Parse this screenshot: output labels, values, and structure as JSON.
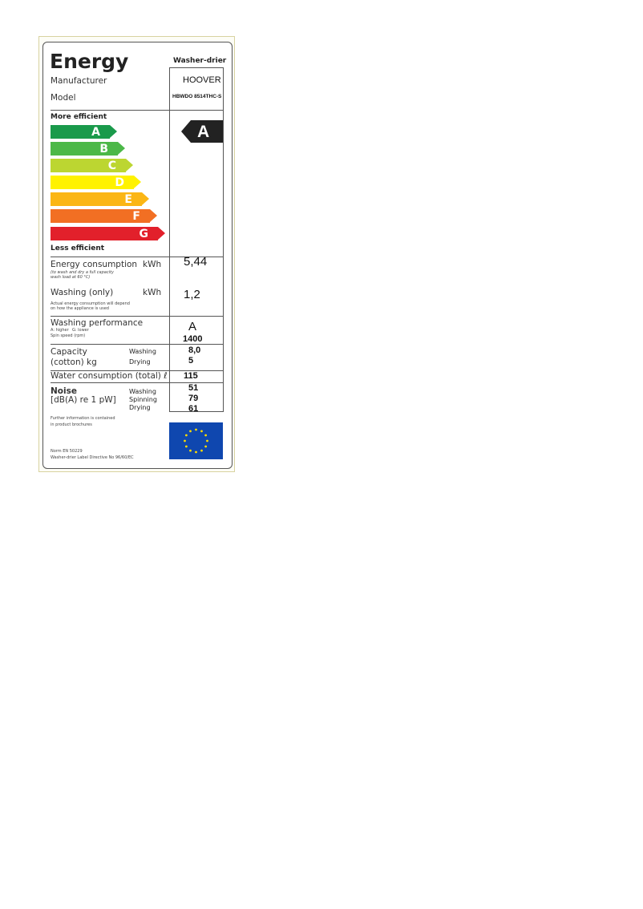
{
  "label": {
    "title": "Energy",
    "appliance_type": "Washer-drier",
    "manufacturer_label": "Manufacturer",
    "manufacturer": "HOOVER",
    "model_label": "Model",
    "model": "HBWDO 8514THC-S",
    "more_efficient": "More efficient",
    "less_efficient": "Less efficient",
    "classes": [
      {
        "letter": "A",
        "color": "#1a9a4b"
      },
      {
        "letter": "B",
        "color": "#4cb848"
      },
      {
        "letter": "C",
        "color": "#bcd631"
      },
      {
        "letter": "D",
        "color": "#fff200"
      },
      {
        "letter": "E",
        "color": "#fbb615"
      },
      {
        "letter": "F",
        "color": "#f26f23"
      },
      {
        "letter": "G",
        "color": "#e2202b"
      }
    ],
    "rating": "A",
    "energy_consumption": {
      "label": "Energy consumption",
      "unit": "kWh",
      "note1": "(to wash and dry a full capacity",
      "note2": "wash load at 60 °C)",
      "value": "5,44"
    },
    "washing_only": {
      "label": "Washing (only)",
      "unit": "kWh",
      "note1": "Actual energy consumption will depend",
      "note2": "on how the appliance is used",
      "value": "1,2"
    },
    "washing_performance": {
      "label": "Washing performance",
      "higher": "A: higher",
      "lower": "G: lower",
      "spin_label": "Spin speed (rpm)",
      "value": "A",
      "spin_value": "1400"
    },
    "capacity": {
      "label1": "Capacity",
      "label2": "(cotton) kg",
      "washing_label": "Washing",
      "drying_label": "Drying",
      "washing": "8,0",
      "drying": "5"
    },
    "water": {
      "label": "Water consumption (total) ℓ",
      "value": "115"
    },
    "noise": {
      "label1": "Noise",
      "label2": "[dB(A) re 1 pW]",
      "washing_label": "Washing",
      "spinning_label": "Spinning",
      "drying_label": "Drying",
      "washing": "51",
      "spinning": "79",
      "drying": "61"
    },
    "further_info1": "Further information is contained",
    "further_info2": "in product brochures",
    "norm": "Norm EN 50229",
    "directive": "Washer-drier Label Directive No 96/60/EC",
    "eu_flag_color": "#0f47af"
  }
}
